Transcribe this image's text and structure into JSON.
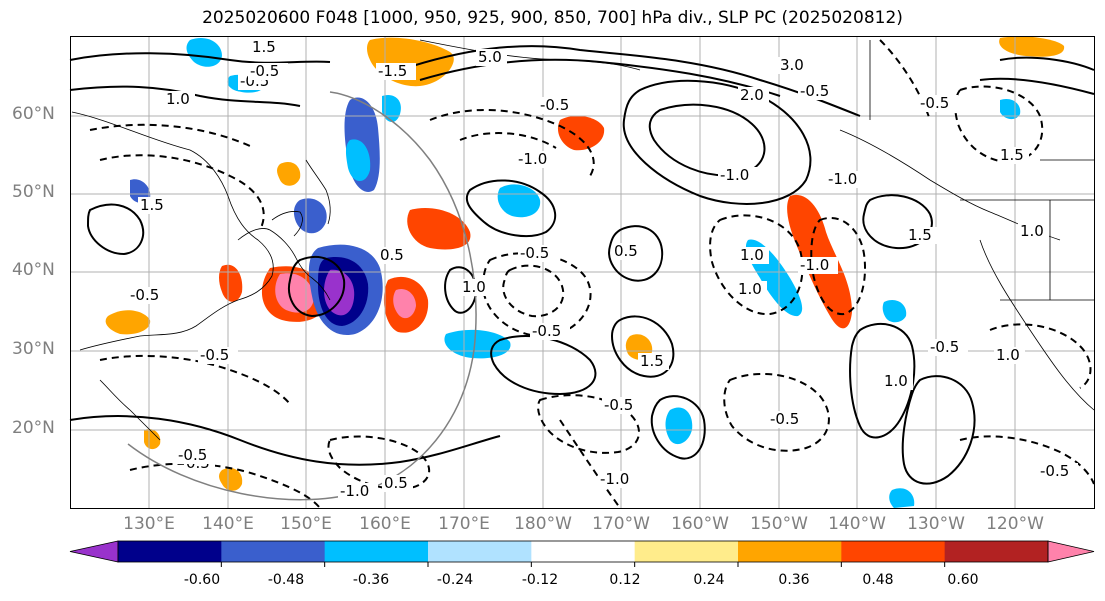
{
  "title": "2025020600 F048 [1000, 950, 925, 900, 850, 700] hPa div., SLP PC (2025020812)",
  "map": {
    "lat_labels": [
      "60°N",
      "50°N",
      "40°N",
      "30°N",
      "20°N"
    ],
    "lon_labels": [
      "130°E",
      "140°E",
      "150°E",
      "160°E",
      "170°E",
      "180°W",
      "170°W",
      "160°W",
      "150°W",
      "140°W",
      "130°W",
      "120°W"
    ],
    "contour_labels": [
      "1.5",
      "-0.5",
      "1.0",
      "-1.5",
      "5.0",
      "3.0",
      "2.0",
      "-1.0",
      "-0.5",
      "1.5",
      "-0.5",
      "0.5",
      "-0.5",
      "1.0",
      "-1.0",
      "1.0",
      "1.5",
      "-0.5",
      "1.0",
      "-0.5",
      "-1.0",
      "1.0",
      "-0.5",
      "-0.5",
      "-0.5",
      "1.5",
      "-1.0",
      "0.5",
      "-0.5",
      "-0.5",
      "0.5",
      "-0.5",
      "-1.0",
      "1.0",
      "-0.5",
      "0.5",
      "-1.0",
      "-0.5",
      "1.5",
      "1.0"
    ]
  },
  "colorbar": {
    "colors": [
      "#9932cc",
      "#00008b",
      "#3a5fcd",
      "#00bfff",
      "#b0e2ff",
      "#ffffff",
      "#ffec8b",
      "#ffa500",
      "#ff4500",
      "#b22222",
      "#ff82ab"
    ],
    "ticks": [
      "-0.60",
      "-0.48",
      "-0.36",
      "-0.24",
      "-0.12",
      "0.12",
      "0.24",
      "0.36",
      "0.48",
      "0.60"
    ]
  }
}
